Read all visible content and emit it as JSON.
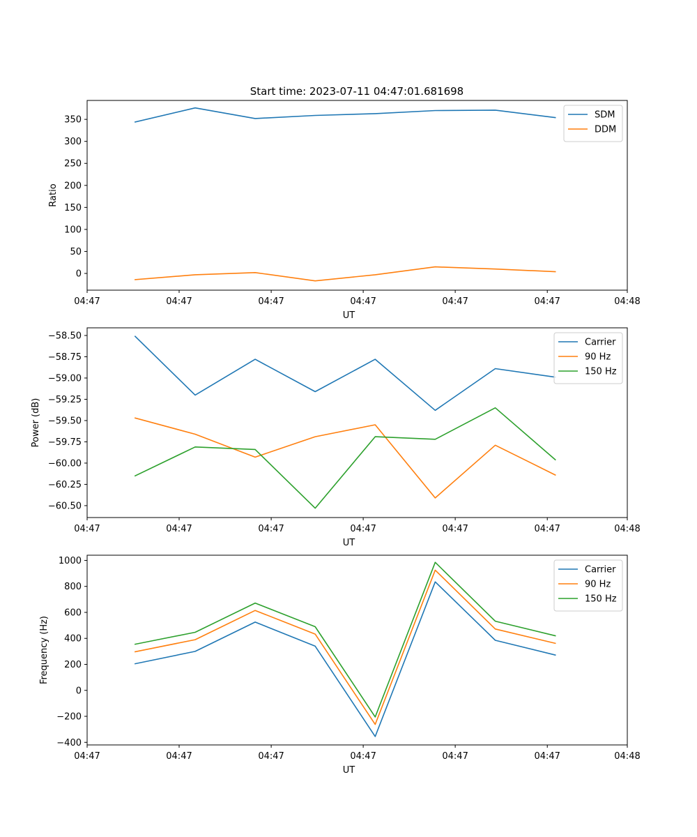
{
  "title": "Start time: 2023-07-11 04:47:01.681698",
  "colors": {
    "blue": "#1f77b4",
    "orange": "#ff7f0e",
    "green": "#2ca02c"
  },
  "chart_data": [
    {
      "type": "line",
      "title": "Start time: 2023-07-11 04:47:01.681698",
      "xlabel": "UT",
      "ylabel": "Ratio",
      "x": [
        1,
        2,
        3,
        4,
        5,
        6,
        7,
        8
      ],
      "xlim": [
        0.2,
        9.2
      ],
      "ylim": [
        -38,
        393
      ],
      "yticks": [
        0,
        50,
        100,
        150,
        200,
        250,
        300,
        350
      ],
      "ytick_labels": [
        "0",
        "50",
        "100",
        "150",
        "200",
        "250",
        "300",
        "350"
      ],
      "xticks": [
        0.2,
        1.733,
        3.267,
        4.8,
        6.333,
        7.867,
        9.2
      ],
      "xtick_labels": [
        "04:47",
        "04:47",
        "04:47",
        "04:47",
        "04:47",
        "04:47",
        "04:48"
      ],
      "legend": "top-right",
      "series": [
        {
          "name": "SDM",
          "color": "#1f77b4",
          "values": [
            344,
            376,
            352,
            359,
            363,
            370,
            371,
            354
          ]
        },
        {
          "name": "DDM",
          "color": "#ff7f0e",
          "values": [
            -14,
            -3,
            2,
            -17,
            -3,
            15,
            10,
            4
          ]
        }
      ]
    },
    {
      "type": "line",
      "title": "",
      "xlabel": "UT",
      "ylabel": "Power (dB)",
      "x": [
        1,
        2,
        3,
        4,
        5,
        6,
        7,
        8
      ],
      "xlim": [
        0.2,
        9.2
      ],
      "ylim": [
        -60.64,
        -58.41
      ],
      "yticks": [
        -58.5,
        -58.75,
        -59.0,
        -59.25,
        -59.5,
        -59.75,
        -60.0,
        -60.25,
        -60.5
      ],
      "ytick_labels": [
        "−58.50",
        "−58.75",
        "−59.00",
        "−59.25",
        "−59.50",
        "−59.75",
        "−60.00",
        "−60.25",
        "−60.50"
      ],
      "xticks": [
        0.2,
        1.733,
        3.267,
        4.8,
        6.333,
        7.867,
        9.2
      ],
      "xtick_labels": [
        "04:47",
        "04:47",
        "04:47",
        "04:47",
        "04:47",
        "04:47",
        "04:48"
      ],
      "legend": "top-right",
      "series": [
        {
          "name": "Carrier",
          "color": "#1f77b4",
          "values": [
            -58.51,
            -59.2,
            -58.78,
            -59.16,
            -58.78,
            -59.38,
            -58.89,
            -58.99
          ]
        },
        {
          "name": "90 Hz",
          "color": "#ff7f0e",
          "values": [
            -59.47,
            -59.66,
            -59.93,
            -59.69,
            -59.55,
            -60.41,
            -59.79,
            -60.14
          ]
        },
        {
          "name": "150 Hz",
          "color": "#2ca02c",
          "values": [
            -60.15,
            -59.81,
            -59.84,
            -60.53,
            -59.69,
            -59.72,
            -59.35,
            -59.96
          ]
        }
      ]
    },
    {
      "type": "line",
      "title": "",
      "xlabel": "UT",
      "ylabel": "Frequency (Hz)",
      "x": [
        1,
        2,
        3,
        4,
        5,
        6,
        7,
        8
      ],
      "xlim": [
        0.2,
        9.2
      ],
      "ylim": [
        -420,
        1040
      ],
      "yticks": [
        1000,
        800,
        600,
        400,
        200,
        0,
        -200,
        -400
      ],
      "ytick_labels": [
        "1000",
        "800",
        "600",
        "400",
        "200",
        "0",
        "−200",
        "−400"
      ],
      "xticks": [
        0.2,
        1.733,
        3.267,
        4.8,
        6.333,
        7.867,
        9.2
      ],
      "xtick_labels": [
        "04:47",
        "04:47",
        "04:47",
        "04:47",
        "04:47",
        "04:47",
        "04:48"
      ],
      "legend": "top-right",
      "series": [
        {
          "name": "Carrier",
          "color": "#1f77b4",
          "values": [
            205,
            300,
            525,
            340,
            -355,
            835,
            385,
            272
          ]
        },
        {
          "name": "90 Hz",
          "color": "#ff7f0e",
          "values": [
            297,
            390,
            615,
            433,
            -262,
            925,
            472,
            362
          ]
        },
        {
          "name": "150 Hz",
          "color": "#2ca02c",
          "values": [
            355,
            447,
            672,
            490,
            -205,
            985,
            532,
            420
          ]
        }
      ]
    }
  ]
}
